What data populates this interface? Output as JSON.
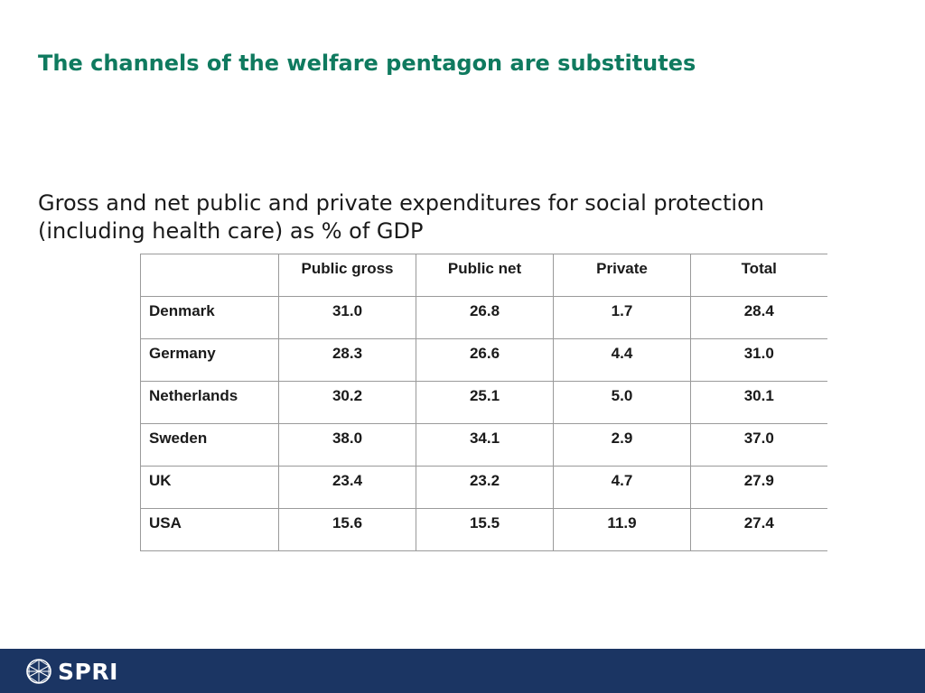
{
  "slide": {
    "title": "The channels of the welfare pentagon are substitutes",
    "subtitle": "Gross and net public and private expenditures for social protection (including health care) as % of GDP"
  },
  "table": {
    "headers": [
      "",
      "Public gross",
      "Public net",
      "Private",
      "Total"
    ],
    "rows": [
      {
        "country": "Denmark",
        "public_gross": "31.0",
        "public_net": "26.8",
        "private": "1.7",
        "total": "28.4"
      },
      {
        "country": "Germany",
        "public_gross": "28.3",
        "public_net": "26.6",
        "private": "4.4",
        "total": "31.0"
      },
      {
        "country": "Netherlands",
        "public_gross": "30.2",
        "public_net": "25.1",
        "private": "5.0",
        "total": "30.1"
      },
      {
        "country": "Sweden",
        "public_gross": "38.0",
        "public_net": "34.1",
        "private": "2.9",
        "total": "37.0"
      },
      {
        "country": "UK",
        "public_gross": "23.4",
        "public_net": "23.2",
        "private": "4.7",
        "total": "27.9"
      },
      {
        "country": "USA",
        "public_gross": "15.6",
        "public_net": "15.5",
        "private": "11.9",
        "total": "27.4"
      }
    ]
  },
  "footer": {
    "logo_text": "SPRI",
    "logo_icon": "globe-network-icon",
    "background_color": "#1b3563"
  },
  "colors": {
    "title": "#0f7a5f",
    "text": "#1a1a1a"
  }
}
